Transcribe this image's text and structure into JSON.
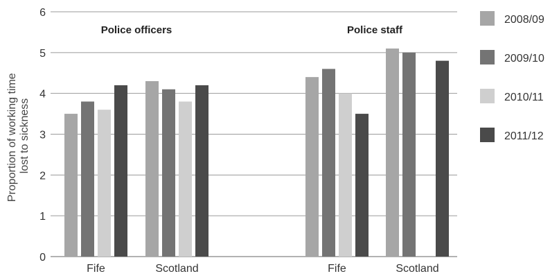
{
  "chart_data": {
    "type": "bar",
    "ylabel_lines": [
      "Proportion of working time",
      "lost to sickness"
    ],
    "ylim": [
      0,
      6
    ],
    "yticks": [
      "0",
      "1",
      "2",
      "3",
      "4",
      "5",
      "6"
    ],
    "grid": true,
    "legend_position": "right",
    "groups": [
      {
        "label": "Police officers",
        "categories": [
          "Fife",
          "Scotland"
        ]
      },
      {
        "label": "Police staff",
        "categories": [
          "Fife",
          "Scotland"
        ]
      }
    ],
    "series": [
      {
        "name": "2008/09",
        "color": "#a6a6a6",
        "values": [
          3.5,
          4.3,
          4.4,
          5.1
        ]
      },
      {
        "name": "2009/10",
        "color": "#747474",
        "values": [
          3.8,
          4.1,
          4.6,
          5.0
        ]
      },
      {
        "name": "2010/11",
        "color": "#cfcfcf",
        "values": [
          3.6,
          3.8,
          4.0,
          null
        ]
      },
      {
        "name": "2011/12",
        "color": "#4a4a4a",
        "values": [
          4.2,
          4.2,
          3.5,
          4.8
        ]
      }
    ]
  }
}
